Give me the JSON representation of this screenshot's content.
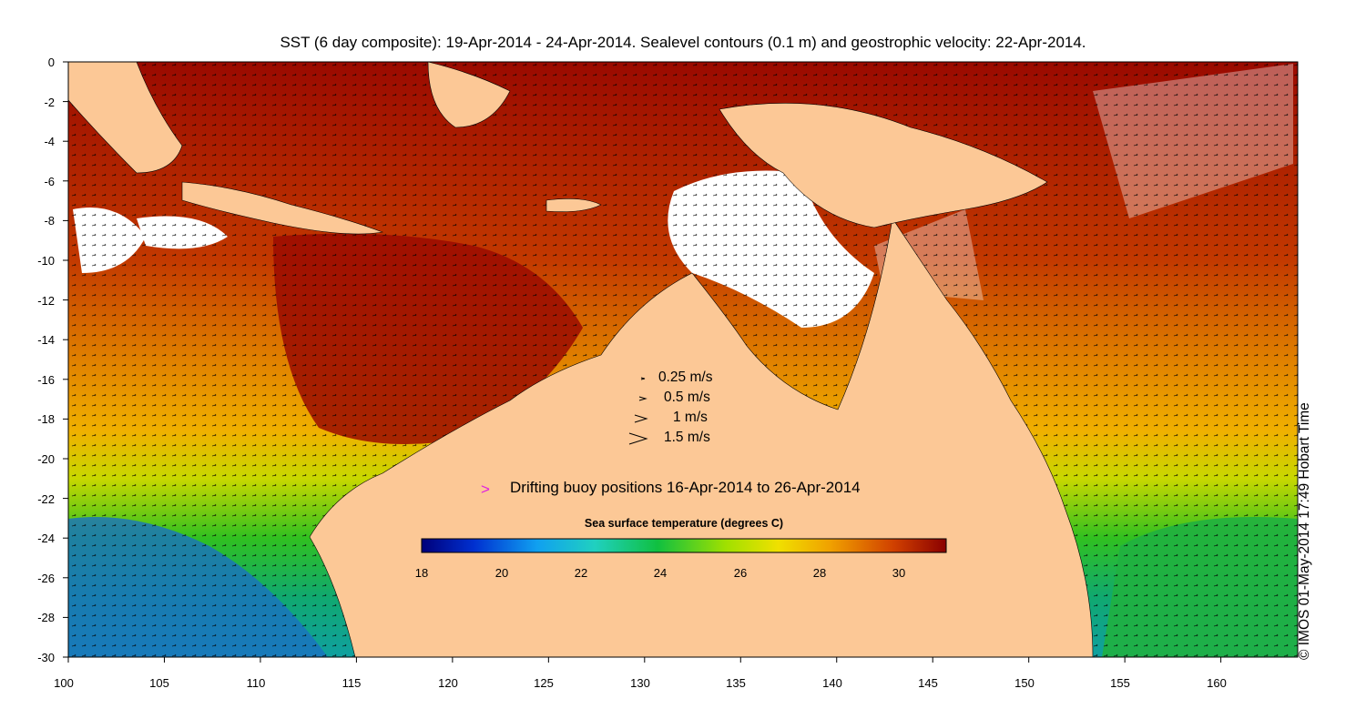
{
  "title": "SST (6 day composite): 19-Apr-2014 - 24-Apr-2014. Sealevel contours (0.1 m) and geostrophic velocity: 22-Apr-2014.",
  "credit": "© IMOS 01-May-2014 17:49 Hobart Time",
  "axes": {
    "x_ticks": [
      "100",
      "105",
      "110",
      "115",
      "120",
      "125",
      "130",
      "135",
      "140",
      "145",
      "150",
      "155",
      "160"
    ],
    "y_ticks": [
      "0",
      "-2",
      "-4",
      "-6",
      "-8",
      "-10",
      "-12",
      "-14",
      "-16",
      "-18",
      "-20",
      "-22",
      "-24",
      "-26",
      "-28",
      "-30"
    ],
    "xlim": [
      100,
      164
    ],
    "ylim": [
      -30,
      0
    ]
  },
  "velocity_legend": [
    {
      "label": "0.25 m/s"
    },
    {
      "label": "0.5 m/s"
    },
    {
      "label": "1 m/s"
    },
    {
      "label": "1.5 m/s"
    }
  ],
  "buoy": {
    "marker": ">",
    "label": "Drifting buoy positions 16-Apr-2014 to 26-Apr-2014",
    "color": "#e020e0"
  },
  "colorbar": {
    "title": "Sea surface temperature (degrees C)",
    "ticks": [
      "18",
      "20",
      "22",
      "24",
      "26",
      "28",
      "30"
    ],
    "range": [
      18,
      31.2
    ]
  },
  "colors": {
    "land": "#fcc896",
    "sst_warm": "#9a0a00",
    "sst_mid": "#e07800",
    "sst_cool": "#20c020",
    "sst_cold": "#1040c0",
    "cloud": "#ffffff"
  }
}
